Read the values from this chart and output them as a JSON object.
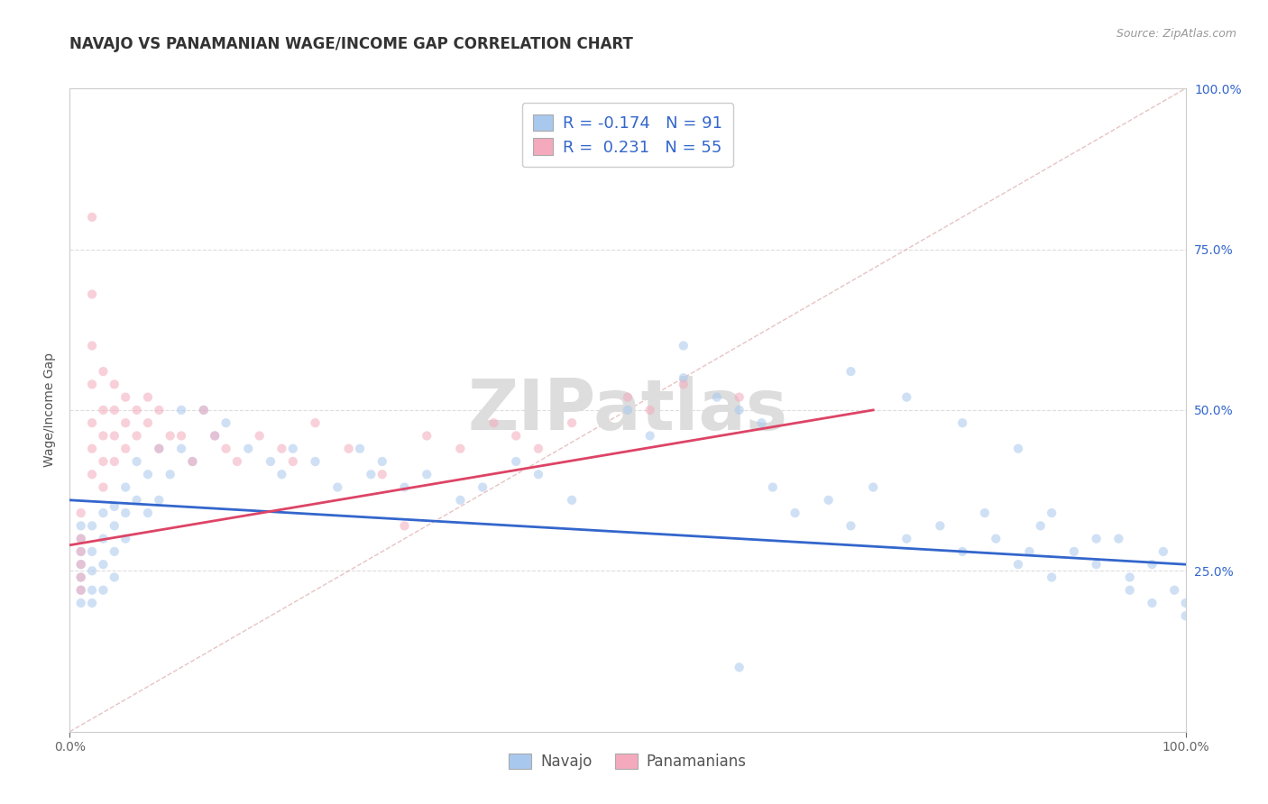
{
  "title": "NAVAJO VS PANAMANIAN WAGE/INCOME GAP CORRELATION CHART",
  "source_text": "Source: ZipAtlas.com",
  "ylabel": "Wage/Income Gap",
  "watermark": "ZIPatlas",
  "xlim": [
    0.0,
    1.0
  ],
  "ylim": [
    0.0,
    1.0
  ],
  "navajo_color": "#A8C8EE",
  "panamanian_color": "#F4AABC",
  "navajo_line_color": "#3366CC",
  "panamanian_line_color": "#DD4466",
  "diagonal_color": "#CCCCCC",
  "legend_R1": "R = -0.174",
  "legend_N1": "N = 91",
  "legend_R2": "R =  0.231",
  "legend_N2": "N = 55",
  "navajo_label": "Navajo",
  "panamanian_label": "Panamanians",
  "navajo_R": -0.174,
  "panamanian_R": 0.231,
  "navajo_scatter_x": [
    0.01,
    0.01,
    0.01,
    0.01,
    0.01,
    0.01,
    0.01,
    0.02,
    0.02,
    0.02,
    0.02,
    0.02,
    0.03,
    0.03,
    0.03,
    0.03,
    0.04,
    0.04,
    0.04,
    0.04,
    0.05,
    0.05,
    0.05,
    0.06,
    0.06,
    0.07,
    0.07,
    0.08,
    0.08,
    0.09,
    0.1,
    0.1,
    0.11,
    0.12,
    0.13,
    0.14,
    0.16,
    0.18,
    0.19,
    0.2,
    0.22,
    0.24,
    0.26,
    0.27,
    0.28,
    0.3,
    0.32,
    0.35,
    0.37,
    0.4,
    0.42,
    0.45,
    0.5,
    0.52,
    0.55,
    0.58,
    0.6,
    0.62,
    0.63,
    0.65,
    0.68,
    0.7,
    0.72,
    0.75,
    0.78,
    0.8,
    0.82,
    0.83,
    0.85,
    0.86,
    0.87,
    0.88,
    0.9,
    0.92,
    0.94,
    0.95,
    0.97,
    0.98,
    0.99,
    1.0,
    0.55,
    0.7,
    0.75,
    0.8,
    0.85,
    0.88,
    0.92,
    0.95,
    0.97,
    1.0,
    0.6
  ],
  "navajo_scatter_y": [
    0.3,
    0.32,
    0.28,
    0.26,
    0.24,
    0.22,
    0.2,
    0.32,
    0.28,
    0.25,
    0.22,
    0.2,
    0.34,
    0.3,
    0.26,
    0.22,
    0.35,
    0.32,
    0.28,
    0.24,
    0.38,
    0.34,
    0.3,
    0.42,
    0.36,
    0.4,
    0.34,
    0.44,
    0.36,
    0.4,
    0.5,
    0.44,
    0.42,
    0.5,
    0.46,
    0.48,
    0.44,
    0.42,
    0.4,
    0.44,
    0.42,
    0.38,
    0.44,
    0.4,
    0.42,
    0.38,
    0.4,
    0.36,
    0.38,
    0.42,
    0.4,
    0.36,
    0.5,
    0.46,
    0.6,
    0.52,
    0.5,
    0.48,
    0.38,
    0.34,
    0.36,
    0.32,
    0.38,
    0.3,
    0.32,
    0.28,
    0.34,
    0.3,
    0.26,
    0.28,
    0.32,
    0.24,
    0.28,
    0.26,
    0.3,
    0.24,
    0.26,
    0.28,
    0.22,
    0.2,
    0.55,
    0.56,
    0.52,
    0.48,
    0.44,
    0.34,
    0.3,
    0.22,
    0.2,
    0.18,
    0.1
  ],
  "panamanian_scatter_x": [
    0.01,
    0.01,
    0.01,
    0.01,
    0.01,
    0.01,
    0.02,
    0.02,
    0.02,
    0.02,
    0.02,
    0.02,
    0.02,
    0.03,
    0.03,
    0.03,
    0.03,
    0.03,
    0.04,
    0.04,
    0.04,
    0.04,
    0.05,
    0.05,
    0.05,
    0.06,
    0.06,
    0.07,
    0.07,
    0.08,
    0.08,
    0.09,
    0.1,
    0.11,
    0.12,
    0.13,
    0.14,
    0.15,
    0.17,
    0.19,
    0.2,
    0.22,
    0.25,
    0.28,
    0.3,
    0.32,
    0.35,
    0.38,
    0.4,
    0.42,
    0.45,
    0.5,
    0.52,
    0.55,
    0.6
  ],
  "panamanian_scatter_y": [
    0.34,
    0.3,
    0.28,
    0.26,
    0.24,
    0.22,
    0.8,
    0.68,
    0.6,
    0.54,
    0.48,
    0.44,
    0.4,
    0.56,
    0.5,
    0.46,
    0.42,
    0.38,
    0.54,
    0.5,
    0.46,
    0.42,
    0.52,
    0.48,
    0.44,
    0.5,
    0.46,
    0.52,
    0.48,
    0.5,
    0.44,
    0.46,
    0.46,
    0.42,
    0.5,
    0.46,
    0.44,
    0.42,
    0.46,
    0.44,
    0.42,
    0.48,
    0.44,
    0.4,
    0.32,
    0.46,
    0.44,
    0.48,
    0.46,
    0.44,
    0.48,
    0.52,
    0.5,
    0.54,
    0.52
  ],
  "background_color": "#FFFFFF",
  "grid_color": "#DDDDDD",
  "title_fontsize": 12,
  "axis_label_fontsize": 10,
  "tick_fontsize": 10,
  "scatter_size": 55,
  "scatter_alpha": 0.55,
  "line_width": 2.0,
  "navajo_trend_x0": 0.0,
  "navajo_trend_y0": 0.36,
  "navajo_trend_x1": 1.0,
  "navajo_trend_y1": 0.26,
  "pana_trend_x0": 0.0,
  "pana_trend_y0": 0.29,
  "pana_trend_x1": 0.72,
  "pana_trend_y1": 0.5
}
